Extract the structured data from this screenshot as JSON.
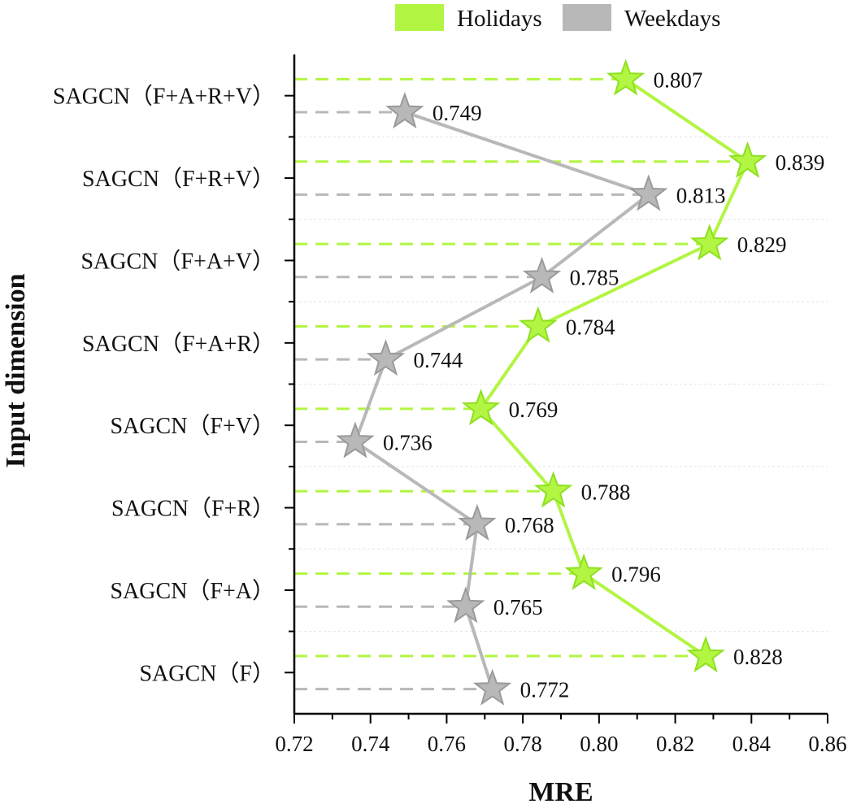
{
  "chart_data": {
    "type": "line",
    "orientation": "horizontal",
    "xlabel": "MRE",
    "ylabel": "Input dimension",
    "xlim": [
      0.72,
      0.86
    ],
    "xticks": [
      "0.72",
      "0.74",
      "0.76",
      "0.78",
      "0.80",
      "0.82",
      "0.84",
      "0.86"
    ],
    "categories": [
      "SAGCN（F+A+R+V）",
      "SAGCN（F+R+V）",
      "SAGCN（F+A+V）",
      "SAGCN（F+A+R）",
      "SAGCN（F+V）",
      "SAGCN（F+R）",
      "SAGCN（F+A）",
      "SAGCN（F）"
    ],
    "series": [
      {
        "name": "Holidays",
        "color": "#b2f542",
        "marker": "star",
        "values": [
          0.807,
          0.839,
          0.829,
          0.784,
          0.769,
          0.788,
          0.796,
          0.828
        ],
        "labels": [
          "0.807",
          "0.839",
          "0.829",
          "0.784",
          "0.769",
          "0.788",
          "0.796",
          "0.828"
        ]
      },
      {
        "name": "Weekdays",
        "color": "#b8b8b8",
        "marker": "star",
        "values": [
          0.749,
          0.813,
          0.785,
          0.744,
          0.736,
          0.768,
          0.765,
          0.772
        ],
        "labels": [
          "0.749",
          "0.813",
          "0.785",
          "0.744",
          "0.736",
          "0.768",
          "0.765",
          "0.772"
        ]
      }
    ],
    "legend": "top",
    "grid": "horizontal-dashed"
  }
}
